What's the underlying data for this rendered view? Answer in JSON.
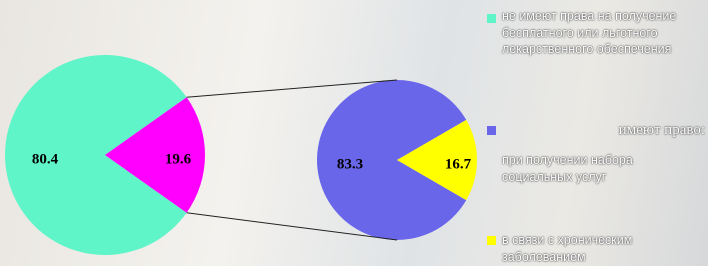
{
  "chart_data": {
    "type": "pie_of_pie",
    "pies": [
      {
        "values": [
          80.4,
          19.6
        ],
        "colors": [
          "#5ff5c8",
          "#ff00ff"
        ]
      },
      {
        "values": [
          83.3,
          16.7
        ],
        "colors": [
          "#6a66ea",
          "#ffff00"
        ]
      }
    ],
    "legend": [
      {
        "label": "не имеют права на получение бесплатного или льготного лекарственного обеспечения",
        "color": "#5ff5c8"
      },
      {
        "label": "при получении набора социальных услуг",
        "color": "#6a66ea"
      },
      {
        "label": "в связи с хроническим заболеванием",
        "color": "#ffff00"
      }
    ],
    "annotation": "имеют право:"
  }
}
